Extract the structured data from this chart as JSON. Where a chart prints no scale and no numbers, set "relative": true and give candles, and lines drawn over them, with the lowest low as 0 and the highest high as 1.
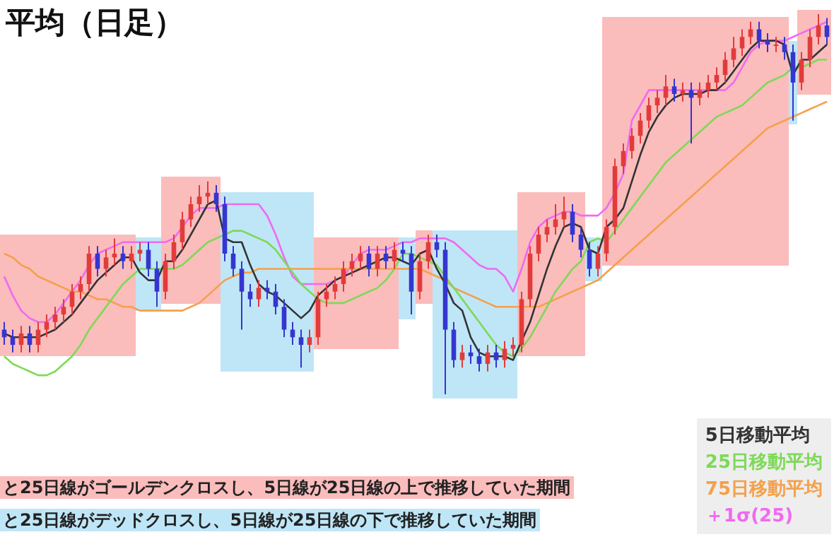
{
  "chart_data": {
    "type": "candlestick",
    "title": "平均（日足）",
    "relative": true,
    "marker": "none",
    "line_style": "solid",
    "annotations": [
      "と25日線がゴールデンクロスし、5日線が25日線の上で推移していた期間",
      "と25日線がデッドクロスし、5日線が25日線の下で推移していた期間"
    ],
    "colors": [
      "#3535d0",
      "#3535d0",
      "#e23b3b",
      "#3535d0",
      "#e23b3b",
      "#e23b3b",
      "#e23b3b",
      "#e23b3b",
      "#e23b3b",
      "#e23b3b",
      "#e23b3b",
      "#3535d0",
      "#e23b3b",
      "#e23b3b",
      "#3535d0",
      "#e23b3b",
      "#e23b3b",
      "#3535d0",
      "#3535d0",
      "#e23b3b",
      "#e23b3b",
      "#e23b3b",
      "#e23b3b",
      "#e23b3b",
      "#e23b3b",
      "#3535d0",
      "#3535d0",
      "#3535d0",
      "#3535d0",
      "#3535d0",
      "#e23b3b",
      "#3535d0",
      "#3535d0",
      "#3535d0",
      "#3535d0",
      "#3535d0",
      "#e23b3b",
      "#e23b3b",
      "#e23b3b",
      "#e23b3b",
      "#e23b3b",
      "#e23b3b",
      "#e23b3b",
      "#3535d0",
      "#e23b3b",
      "#3535d0",
      "#e23b3b",
      "#3535d0",
      "#3535d0",
      "#e23b3b",
      "#e23b3b",
      "#3535d0",
      "#3535d0",
      "#3535d0",
      "#e23b3b",
      "#3535d0",
      "#3535d0",
      "#e23b3b",
      "#3535d0",
      "#e23b3b",
      "#e23b3b",
      "#e23b3b",
      "#e23b3b",
      "#e23b3b",
      "#e23b3b",
      "#e23b3b",
      "#e23b3b",
      "#3535d0",
      "#3535d0",
      "#3535d0",
      "#e23b3b",
      "#e23b3b",
      "#e23b3b",
      "#e23b3b",
      "#e23b3b",
      "#e23b3b",
      "#e23b3b",
      "#e23b3b",
      "#e23b3b",
      "#3535d0",
      "#e23b3b",
      "#3535d0",
      "#e23b3b",
      "#e23b3b",
      "#e23b3b",
      "#e23b3b",
      "#e23b3b",
      "#e23b3b",
      "#e23b3b",
      "#3535d0",
      "#3535d0",
      "#e23b3b",
      "#3535d0",
      "#3535d0",
      "#e23b3b",
      "#e23b3b",
      "#e23b3b",
      "#3535d0"
    ],
    "categories": [
      null,
      null,
      null,
      null,
      null,
      null,
      null,
      null,
      null,
      null,
      null,
      null,
      null,
      null,
      null,
      null,
      null,
      null,
      null,
      null,
      null,
      null,
      null,
      null,
      null,
      null,
      null,
      null,
      null,
      null,
      null,
      null,
      null,
      null,
      null,
      null,
      null,
      null,
      null,
      null,
      null,
      null,
      null,
      null,
      null,
      null,
      null,
      null,
      null,
      null,
      null,
      null,
      null,
      null,
      null,
      null,
      null,
      null,
      null,
      null,
      null,
      null,
      null,
      null,
      null,
      null,
      null,
      null,
      null,
      null,
      null,
      null,
      null,
      null,
      null,
      null,
      null,
      null,
      null,
      null,
      null,
      null,
      null,
      null,
      null,
      null,
      null,
      null,
      null,
      null,
      null,
      null,
      null,
      null,
      null,
      null,
      null,
      null
    ],
    "ohlc": [
      [
        0.17,
        0.19,
        0.13,
        0.15
      ],
      [
        0.15,
        0.17,
        0.11,
        0.13
      ],
      [
        0.13,
        0.18,
        0.11,
        0.16
      ],
      [
        0.16,
        0.18,
        0.11,
        0.13
      ],
      [
        0.13,
        0.19,
        0.11,
        0.17
      ],
      [
        0.17,
        0.21,
        0.15,
        0.19
      ],
      [
        0.19,
        0.23,
        0.17,
        0.21
      ],
      [
        0.21,
        0.25,
        0.19,
        0.23
      ],
      [
        0.23,
        0.29,
        0.21,
        0.27
      ],
      [
        0.27,
        0.31,
        0.25,
        0.29
      ],
      [
        0.29,
        0.39,
        0.27,
        0.37
      ],
      [
        0.37,
        0.39,
        0.31,
        0.33
      ],
      [
        0.33,
        0.38,
        0.31,
        0.36
      ],
      [
        0.36,
        0.41,
        0.34,
        0.37
      ],
      [
        0.37,
        0.39,
        0.33,
        0.35
      ],
      [
        0.35,
        0.39,
        0.33,
        0.37
      ],
      [
        0.37,
        0.4,
        0.35,
        0.38
      ],
      [
        0.38,
        0.4,
        0.31,
        0.33
      ],
      [
        0.33,
        0.35,
        0.23,
        0.27
      ],
      [
        0.27,
        0.37,
        0.25,
        0.35
      ],
      [
        0.35,
        0.42,
        0.33,
        0.4
      ],
      [
        0.4,
        0.48,
        0.38,
        0.46
      ],
      [
        0.46,
        0.52,
        0.44,
        0.5
      ],
      [
        0.5,
        0.55,
        0.48,
        0.52
      ],
      [
        0.52,
        0.56,
        0.5,
        0.53
      ],
      [
        0.53,
        0.55,
        0.48,
        0.5
      ],
      [
        0.5,
        0.52,
        0.35,
        0.37
      ],
      [
        0.37,
        0.39,
        0.31,
        0.33
      ],
      [
        0.33,
        0.35,
        0.17,
        0.27
      ],
      [
        0.27,
        0.29,
        0.23,
        0.25
      ],
      [
        0.25,
        0.3,
        0.23,
        0.28
      ],
      [
        0.28,
        0.3,
        0.25,
        0.27
      ],
      [
        0.27,
        0.29,
        0.21,
        0.23
      ],
      [
        0.23,
        0.25,
        0.15,
        0.17
      ],
      [
        0.17,
        0.19,
        0.13,
        0.15
      ],
      [
        0.15,
        0.17,
        0.07,
        0.13
      ],
      [
        0.13,
        0.17,
        0.11,
        0.15
      ],
      [
        0.15,
        0.27,
        0.13,
        0.25
      ],
      [
        0.25,
        0.29,
        0.23,
        0.27
      ],
      [
        0.27,
        0.31,
        0.25,
        0.29
      ],
      [
        0.29,
        0.35,
        0.27,
        0.33
      ],
      [
        0.33,
        0.37,
        0.31,
        0.35
      ],
      [
        0.35,
        0.39,
        0.33,
        0.37
      ],
      [
        0.37,
        0.39,
        0.31,
        0.33
      ],
      [
        0.33,
        0.39,
        0.31,
        0.37
      ],
      [
        0.37,
        0.39,
        0.33,
        0.35
      ],
      [
        0.35,
        0.4,
        0.33,
        0.38
      ],
      [
        0.38,
        0.4,
        0.35,
        0.37
      ],
      [
        0.37,
        0.39,
        0.21,
        0.27
      ],
      [
        0.27,
        0.37,
        0.25,
        0.35
      ],
      [
        0.35,
        0.42,
        0.33,
        0.4
      ],
      [
        0.4,
        0.42,
        0.36,
        0.38
      ],
      [
        0.38,
        0.4,
        0.0,
        0.17
      ],
      [
        0.17,
        0.19,
        0.07,
        0.09
      ],
      [
        0.09,
        0.13,
        0.07,
        0.11
      ],
      [
        0.11,
        0.13,
        0.08,
        0.1
      ],
      [
        0.1,
        0.12,
        0.06,
        0.08
      ],
      [
        0.08,
        0.13,
        0.06,
        0.11
      ],
      [
        0.11,
        0.13,
        0.07,
        0.09
      ],
      [
        0.09,
        0.14,
        0.07,
        0.12
      ],
      [
        0.12,
        0.15,
        0.1,
        0.13
      ],
      [
        0.13,
        0.27,
        0.11,
        0.25
      ],
      [
        0.25,
        0.39,
        0.23,
        0.37
      ],
      [
        0.37,
        0.44,
        0.35,
        0.42
      ],
      [
        0.42,
        0.46,
        0.4,
        0.44
      ],
      [
        0.44,
        0.5,
        0.42,
        0.46
      ],
      [
        0.46,
        0.52,
        0.44,
        0.48
      ],
      [
        0.48,
        0.5,
        0.4,
        0.42
      ],
      [
        0.42,
        0.44,
        0.36,
        0.38
      ],
      [
        0.38,
        0.4,
        0.31,
        0.33
      ],
      [
        0.33,
        0.39,
        0.31,
        0.37
      ],
      [
        0.37,
        0.46,
        0.35,
        0.44
      ],
      [
        0.44,
        0.62,
        0.42,
        0.6
      ],
      [
        0.6,
        0.66,
        0.58,
        0.64
      ],
      [
        0.64,
        0.7,
        0.62,
        0.68
      ],
      [
        0.68,
        0.74,
        0.66,
        0.72
      ],
      [
        0.72,
        0.78,
        0.7,
        0.76
      ],
      [
        0.76,
        0.8,
        0.74,
        0.78
      ],
      [
        0.78,
        0.84,
        0.76,
        0.81
      ],
      [
        0.81,
        0.83,
        0.77,
        0.79
      ],
      [
        0.79,
        0.82,
        0.77,
        0.8
      ],
      [
        0.8,
        0.82,
        0.66,
        0.78
      ],
      [
        0.78,
        0.82,
        0.76,
        0.8
      ],
      [
        0.8,
        0.84,
        0.78,
        0.82
      ],
      [
        0.82,
        0.86,
        0.8,
        0.84
      ],
      [
        0.84,
        0.9,
        0.82,
        0.88
      ],
      [
        0.88,
        0.94,
        0.86,
        0.91
      ],
      [
        0.91,
        0.96,
        0.89,
        0.94
      ],
      [
        0.94,
        0.98,
        0.92,
        0.96
      ],
      [
        0.96,
        0.98,
        0.91,
        0.93
      ],
      [
        0.93,
        0.95,
        0.9,
        0.92
      ],
      [
        0.92,
        0.94,
        0.9,
        0.92
      ],
      [
        0.92,
        0.94,
        0.88,
        0.9
      ],
      [
        0.9,
        0.92,
        0.72,
        0.82
      ],
      [
        0.82,
        0.9,
        0.8,
        0.88
      ],
      [
        0.88,
        0.96,
        0.86,
        0.94
      ],
      [
        0.94,
        1.0,
        0.92,
        0.97
      ],
      [
        0.97,
        0.99,
        0.92,
        0.94
      ]
    ],
    "series": [
      {
        "name": "5日移動平均",
        "type": "line",
        "color": "#333333",
        "values": [
          0.16,
          0.15,
          0.15,
          0.15,
          0.15,
          0.16,
          0.17,
          0.19,
          0.21,
          0.24,
          0.27,
          0.3,
          0.32,
          0.34,
          0.36,
          0.36,
          0.32,
          0.3,
          0.3,
          0.35,
          0.35,
          0.38,
          0.42,
          0.46,
          0.5,
          0.51,
          0.41,
          0.4,
          0.4,
          0.34,
          0.29,
          0.27,
          0.26,
          0.24,
          0.22,
          0.2,
          0.22,
          0.26,
          0.28,
          0.3,
          0.31,
          0.32,
          0.33,
          0.34,
          0.35,
          0.36,
          0.36,
          0.35,
          0.34,
          0.37,
          0.38,
          0.33,
          0.29,
          0.24,
          0.22,
          0.15,
          0.11,
          0.1,
          0.1,
          0.1,
          0.09,
          0.14,
          0.19,
          0.26,
          0.33,
          0.39,
          0.44,
          0.45,
          0.44,
          0.38,
          0.37,
          0.44,
          0.46,
          0.49,
          0.56,
          0.63,
          0.69,
          0.73,
          0.76,
          0.78,
          0.79,
          0.79,
          0.79,
          0.8,
          0.8,
          0.82,
          0.85,
          0.88,
          0.91,
          0.93,
          0.93,
          0.93,
          0.92,
          0.84,
          0.88,
          0.88,
          0.9,
          0.92
        ]
      },
      {
        "name": "25日移動平均",
        "type": "line",
        "color": "#7ed957",
        "values": [
          0.1,
          0.08,
          0.07,
          0.06,
          0.05,
          0.05,
          0.06,
          0.08,
          0.1,
          0.13,
          0.17,
          0.2,
          0.23,
          0.26,
          0.29,
          0.31,
          0.33,
          0.33,
          0.33,
          0.33,
          0.33,
          0.34,
          0.36,
          0.38,
          0.4,
          0.41,
          0.42,
          0.43,
          0.43,
          0.42,
          0.41,
          0.4,
          0.38,
          0.35,
          0.32,
          0.29,
          0.27,
          0.25,
          0.24,
          0.24,
          0.24,
          0.25,
          0.26,
          0.27,
          0.28,
          0.3,
          0.33,
          0.37,
          0.37,
          0.36,
          0.35,
          0.34,
          0.31,
          0.28,
          0.25,
          0.22,
          0.19,
          0.16,
          0.13,
          0.11,
          0.1,
          0.12,
          0.15,
          0.19,
          0.23,
          0.27,
          0.3,
          0.33,
          0.35,
          0.4,
          0.41,
          0.4,
          0.43,
          0.46,
          0.49,
          0.52,
          0.55,
          0.58,
          0.61,
          0.63,
          0.65,
          0.67,
          0.69,
          0.71,
          0.73,
          0.74,
          0.75,
          0.76,
          0.78,
          0.8,
          0.82,
          0.83,
          0.84,
          0.86,
          0.86,
          0.87,
          0.88,
          0.88
        ]
      },
      {
        "name": "75日移動平均",
        "type": "line",
        "color": "#f5a04a",
        "values": [
          0.37,
          0.36,
          0.34,
          0.33,
          0.31,
          0.3,
          0.29,
          0.28,
          0.27,
          0.27,
          0.26,
          0.25,
          0.25,
          0.24,
          0.23,
          0.23,
          0.22,
          0.22,
          0.22,
          0.22,
          0.22,
          0.22,
          0.23,
          0.24,
          0.26,
          0.28,
          0.3,
          0.31,
          0.32,
          0.32,
          0.33,
          0.33,
          0.33,
          0.33,
          0.33,
          0.33,
          0.33,
          0.33,
          0.33,
          0.33,
          0.33,
          0.33,
          0.33,
          0.33,
          0.33,
          0.33,
          0.33,
          0.33,
          0.33,
          0.33,
          0.32,
          0.31,
          0.3,
          0.28,
          0.27,
          0.26,
          0.25,
          0.24,
          0.23,
          0.23,
          0.23,
          0.23,
          0.23,
          0.23,
          0.24,
          0.25,
          0.26,
          0.27,
          0.28,
          0.29,
          0.3,
          0.32,
          0.34,
          0.36,
          0.38,
          0.4,
          0.42,
          0.44,
          0.46,
          0.48,
          0.5,
          0.52,
          0.54,
          0.56,
          0.58,
          0.6,
          0.62,
          0.64,
          0.66,
          0.68,
          0.7,
          0.71,
          0.72,
          0.73,
          0.74,
          0.75,
          0.76,
          0.77
        ]
      },
      {
        "name": "＋1σ(25)",
        "type": "line",
        "color": "#f06af0",
        "values": [
          0.31,
          0.26,
          0.22,
          0.2,
          0.19,
          0.19,
          0.21,
          0.24,
          0.27,
          0.3,
          0.34,
          0.37,
          0.38,
          0.39,
          0.4,
          0.4,
          0.4,
          0.4,
          0.4,
          0.4,
          0.41,
          0.44,
          0.47,
          0.49,
          0.49,
          0.49,
          0.5,
          0.5,
          0.5,
          0.5,
          0.5,
          0.47,
          0.42,
          0.36,
          0.31,
          0.29,
          0.29,
          0.29,
          0.29,
          0.3,
          0.31,
          0.34,
          0.37,
          0.38,
          0.38,
          0.38,
          0.39,
          0.4,
          0.4,
          0.41,
          0.41,
          0.41,
          0.41,
          0.4,
          0.38,
          0.36,
          0.34,
          0.33,
          0.33,
          0.31,
          0.27,
          0.33,
          0.4,
          0.44,
          0.46,
          0.47,
          0.48,
          0.48,
          0.47,
          0.47,
          0.47,
          0.49,
          0.53,
          0.58,
          0.72,
          0.76,
          0.8,
          0.8,
          0.8,
          0.8,
          0.8,
          0.8,
          0.8,
          0.8,
          0.8,
          0.8,
          0.82,
          0.86,
          0.9,
          0.92,
          0.93,
          0.93,
          0.93,
          0.94,
          0.95,
          0.96,
          0.97,
          0.98
        ]
      }
    ]
  }
}
